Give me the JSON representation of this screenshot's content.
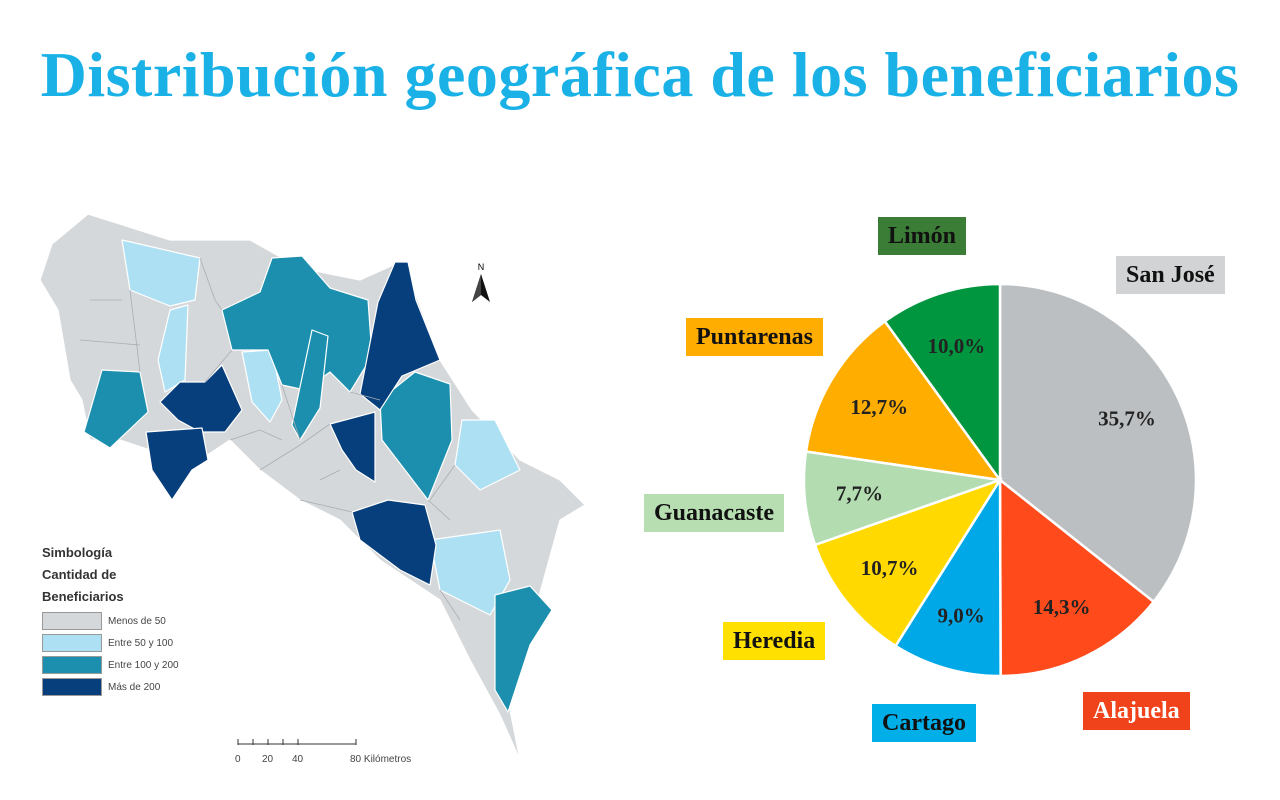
{
  "title": "Distribución geográfica de los beneficiarios",
  "legend": {
    "heading1": "Simbología",
    "heading2": "Cantidad de",
    "heading3": "Beneficiarios",
    "items": [
      {
        "label": "Menos de 50",
        "color": "#d5d8db"
      },
      {
        "label": "Entre 50 y 100",
        "color": "#aee0f4"
      },
      {
        "label": "Entre 100 y 200",
        "color": "#1c8fae"
      },
      {
        "label": "Más de 200",
        "color": "#073e7c"
      }
    ]
  },
  "north_label": "N",
  "scale": {
    "ticks": [
      "0",
      "20",
      "40",
      "80 Kilómetros"
    ]
  },
  "chart_data": {
    "type": "pie",
    "slices": [
      {
        "name": "San José",
        "value": 35.7,
        "label": "35,7%",
        "color": "#bcbfc1"
      },
      {
        "name": "Alajuela",
        "value": 14.3,
        "label": "14,3%",
        "color": "#ff4a1c"
      },
      {
        "name": "Cartago",
        "value": 9.0,
        "label": "9,0%",
        "color": "#00a8e8"
      },
      {
        "name": "Heredia",
        "value": 10.7,
        "label": "10,7%",
        "color": "#ffd900"
      },
      {
        "name": "Guanacaste",
        "value": 7.7,
        "label": "7,7%",
        "color": "#b3ddb1"
      },
      {
        "name": "Puntarenas",
        "value": 12.7,
        "label": "12,7%",
        "color": "#ffae00"
      },
      {
        "name": "Limón",
        "value": 10.0,
        "label": "10,0%",
        "color": "#00963f"
      }
    ],
    "start_angle": "12 o'clock",
    "direction": "clockwise",
    "category_label_colors": {
      "San José": "#d1d3d4",
      "Alajuela": "#f0431c",
      "Cartago": "#00aee8",
      "Heredia": "#ffe000",
      "Guanacaste": "#b6deb1",
      "Puntarenas": "#ffad00",
      "Limón": "#3b7d37"
    }
  }
}
